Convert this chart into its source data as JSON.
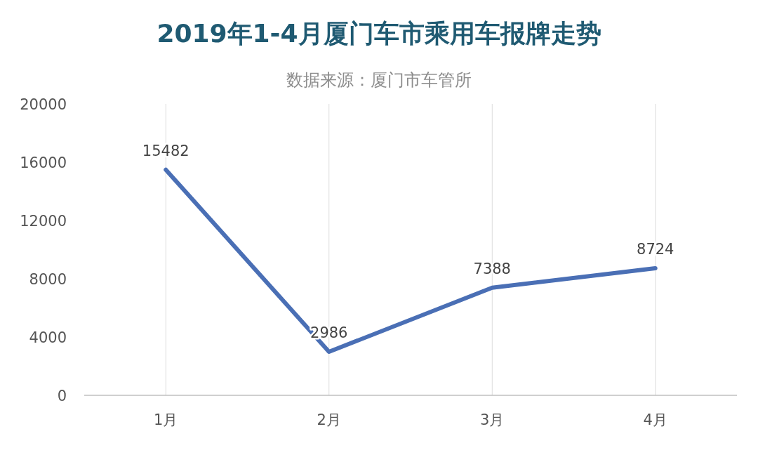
{
  "chart_data": {
    "type": "line",
    "title": "2019年1-4月厦门车市乘用车报牌走势",
    "subtitle": "数据来源：厦门市车管所",
    "categories": [
      "1月",
      "2月",
      "3月",
      "4月"
    ],
    "series": [
      {
        "color": "#4a6fb5",
        "values": [
          15482,
          2986,
          7388,
          8724
        ]
      }
    ],
    "ylim": [
      0,
      20000
    ],
    "yticks": [
      0,
      4000,
      8000,
      12000,
      16000,
      20000
    ],
    "grid": "x",
    "data_labels": true,
    "marker": "none",
    "line_style": "solid"
  }
}
